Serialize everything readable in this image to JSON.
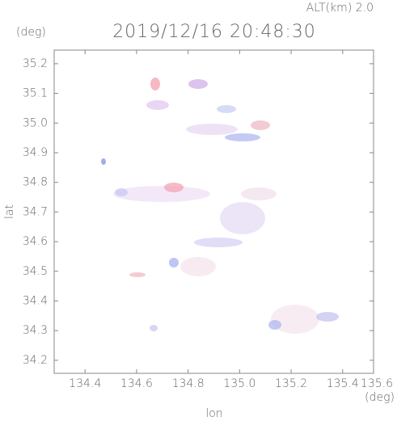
{
  "chart_data": {
    "type": "map",
    "title": "2019/12/16 20:48:30",
    "annotation": "ALT(km) 2.0",
    "x_label": "lon",
    "y_label": "lat",
    "x_unit": "(deg)",
    "y_unit": "(deg)",
    "xlim": [
      134.28,
      135.52
    ],
    "ylim": [
      34.156,
      35.246
    ],
    "xticks": [
      134.4,
      134.6,
      134.8,
      {
        "value": 135.0,
        "label": "135.0"
      },
      135.2,
      135.4,
      135.6
    ],
    "yticks": [
      34.2,
      34.3,
      34.4,
      34.5,
      34.6,
      34.7,
      34.8,
      34.9,
      {
        "value": 35.0,
        "label": "35.0"
      },
      35.1,
      35.2
    ]
  }
}
